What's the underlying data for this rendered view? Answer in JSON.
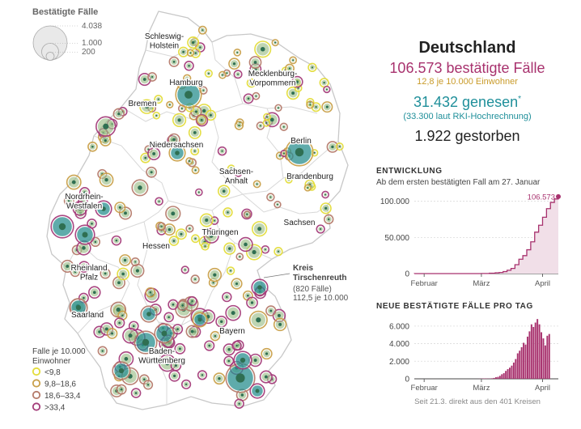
{
  "colors": {
    "bg": "#ffffff",
    "border": "#c8c8c8",
    "land": "#ffffff",
    "muted": "#666666",
    "axis": "#444444",
    "grid": "#d9d9d9",
    "text": "#222222",
    "cases": "#a8326e",
    "per_capita": "#c99b2a",
    "recovered": "#1f8f9a",
    "deaths": "#222222",
    "teal": "#2a8f8f",
    "cat1": "#e3dc3a",
    "cat2": "#c9a04a",
    "cat3": "#b57b6b",
    "cat4": "#a43d7a"
  },
  "size_legend": {
    "title": "Bestätigte Fälle",
    "values": [
      "4.038",
      "1.000",
      "200"
    ]
  },
  "header": {
    "title": "Deutschland",
    "cases": "106.573 bestätigte Fälle",
    "per_capita": "12,8 je 10.000 Einwohner",
    "recovered": "31.432 genesen",
    "recovered_mark": "*",
    "recovered_note": "(33.300 laut RKI-Hochrechnung)",
    "deaths": "1.922 gestorben"
  },
  "map": {
    "states": [
      {
        "name": "Schleswig-\nHolstein",
        "kind": "state"
      },
      {
        "name": "Hamburg",
        "kind": "city"
      },
      {
        "name": "Mecklenburg-\nVorpommern",
        "kind": "state"
      },
      {
        "name": "Bremen",
        "kind": "city"
      },
      {
        "name": "Niedersachsen",
        "kind": "state"
      },
      {
        "name": "Berlin",
        "kind": "city"
      },
      {
        "name": "Sachsen-\nAnhalt",
        "kind": "state"
      },
      {
        "name": "Brandenburg",
        "kind": "state"
      },
      {
        "name": "Nordrhein-\nWestfalen",
        "kind": "state"
      },
      {
        "name": "Sachsen",
        "kind": "state"
      },
      {
        "name": "Thüringen",
        "kind": "state"
      },
      {
        "name": "Hessen",
        "kind": "state"
      },
      {
        "name": "Rheinland\nPfalz",
        "kind": "state"
      },
      {
        "name": "Saarland",
        "kind": "state"
      },
      {
        "name": "Bayern",
        "kind": "state"
      },
      {
        "name": "Baden-\nWürttemberg",
        "kind": "state"
      }
    ],
    "annotation": {
      "title": "Kreis\nTirschenreuth",
      "cases": "(820 Fälle)",
      "rate": "112,5 je 10.000"
    }
  },
  "rate_legend": {
    "title": "Falle je 10.000\nEinwohner",
    "items": [
      {
        "label": "<9,8",
        "color": "#e3dc3a"
      },
      {
        "label": "9,8–18,6",
        "color": "#c9a04a"
      },
      {
        "label": "18,6–33,4",
        "color": "#b57b6b"
      },
      {
        "label": ">33,4",
        "color": "#a43d7a"
      }
    ]
  },
  "chart_data": [
    {
      "type": "area",
      "title": "ENTWICKLUNG",
      "subtitle": "Ab dem ersten bestätigten Fall am 27. Januar",
      "x_ticks": [
        "Februar",
        "März",
        "April"
      ],
      "y_ticks": [
        "100.000",
        "50.000",
        "0"
      ],
      "ylim": [
        0,
        110000
      ],
      "end_label": "106.573",
      "series": [
        {
          "x": [
            "2020-01-27",
            "2020-02-15",
            "2020-03-01",
            "2020-03-05",
            "2020-03-08",
            "2020-03-10",
            "2020-03-12",
            "2020-03-14",
            "2020-03-16",
            "2020-03-18",
            "2020-03-20",
            "2020-03-22",
            "2020-03-24",
            "2020-03-26",
            "2020-03-28",
            "2020-03-30",
            "2020-04-01",
            "2020-04-03",
            "2020-04-05",
            "2020-04-07",
            "2020-04-09"
          ],
          "y": [
            1,
            16,
            130,
            480,
            1040,
            1565,
            2745,
            4585,
            7156,
            12327,
            19848,
            24873,
            32991,
            43938,
            57298,
            66885,
            77981,
            89838,
            98451,
            103228,
            106573
          ]
        }
      ]
    },
    {
      "type": "bar",
      "title": "NEUE BESTÄTIGTE FÄLLE PRO TAG",
      "note": "Seit 21.3. direkt aus den 401 Kreisen",
      "x_ticks": [
        "Februar",
        "März",
        "April"
      ],
      "y_ticks": [
        "6.000",
        "4.000",
        "2.000",
        "0"
      ],
      "ylim": [
        0,
        7000
      ],
      "x_start": "2020-01-27",
      "values": [
        1,
        0,
        1,
        1,
        1,
        0,
        1,
        2,
        0,
        0,
        0,
        0,
        1,
        0,
        0,
        0,
        0,
        0,
        0,
        0,
        0,
        0,
        0,
        0,
        0,
        0,
        0,
        0,
        0,
        0,
        0,
        2,
        6,
        18,
        27,
        46,
        36,
        24,
        30,
        60,
        100,
        180,
        220,
        340,
        520,
        640,
        900,
        1100,
        1270,
        1500,
        1850,
        2250,
        2900,
        3200,
        3600,
        4100,
        3900,
        4800,
        5400,
        6200,
        5900,
        6400,
        6800,
        6200,
        5300,
        4600,
        3800,
        4900,
        5100
      ]
    }
  ]
}
